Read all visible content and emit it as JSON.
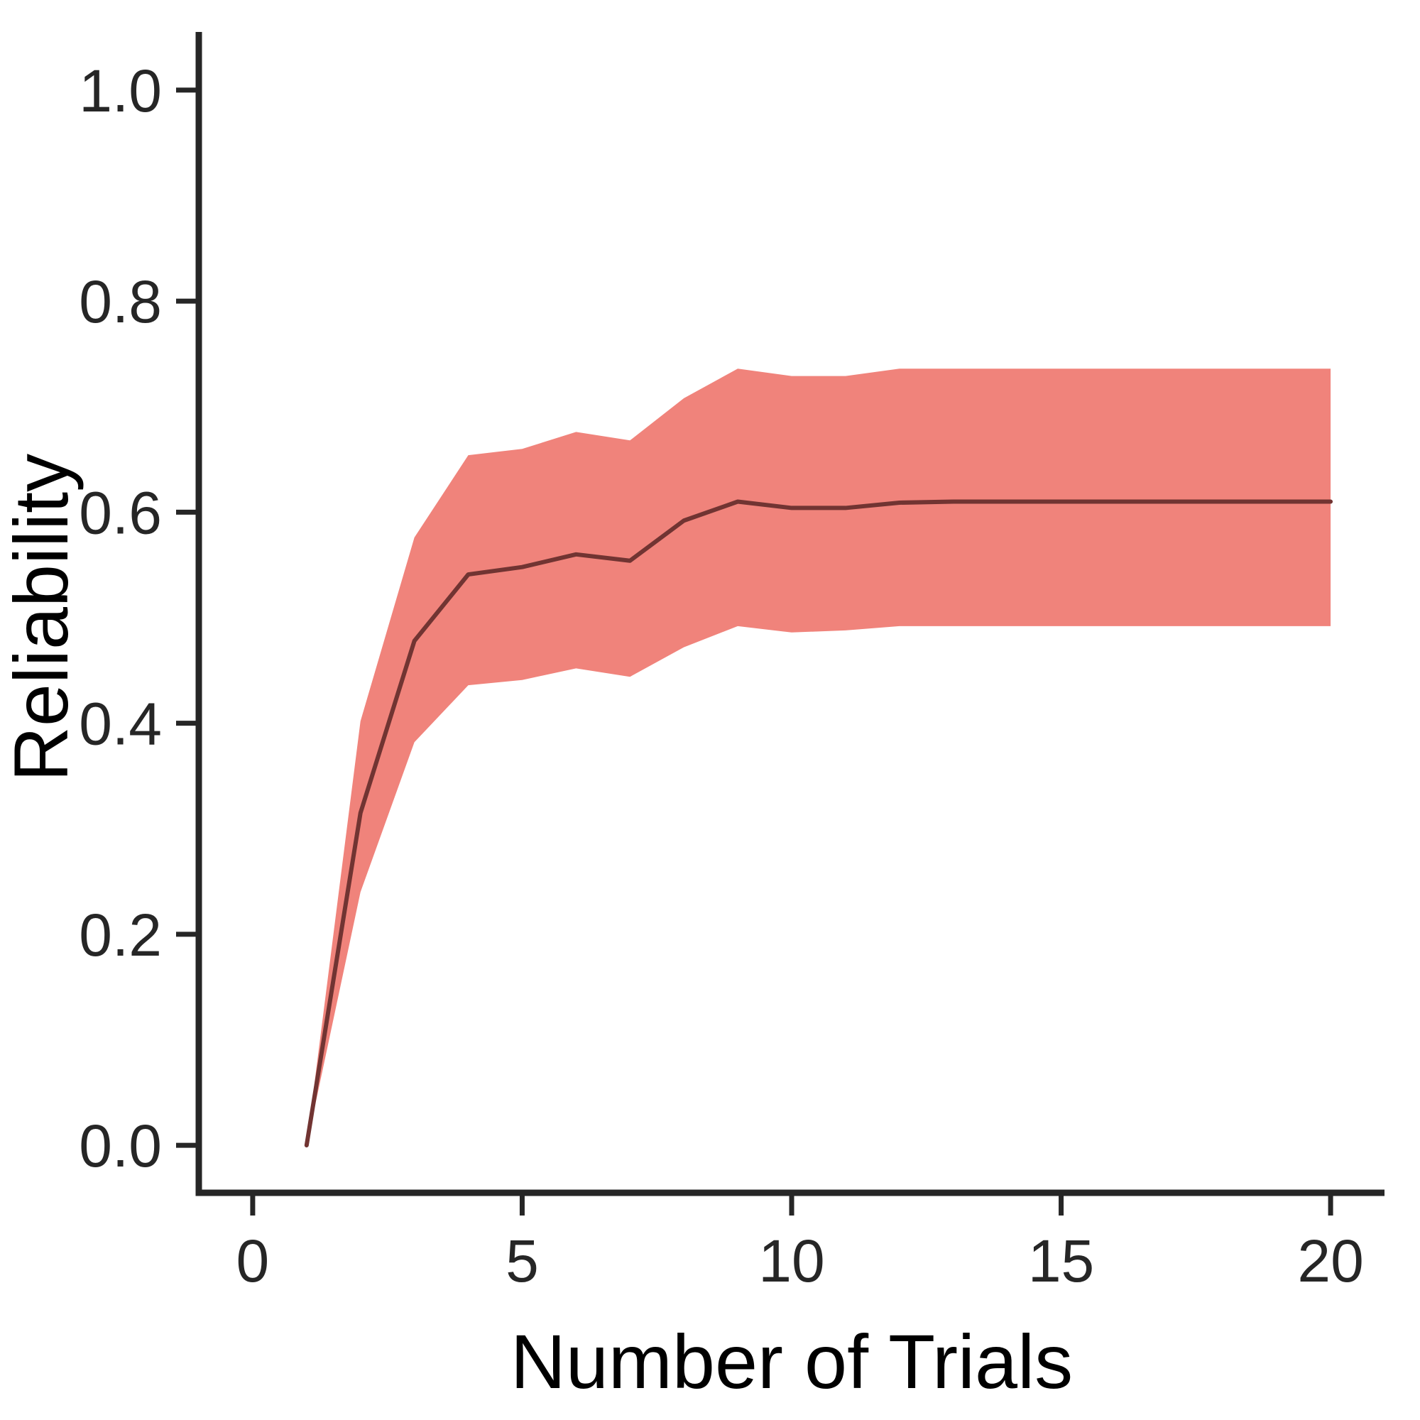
{
  "chart_data": {
    "type": "line",
    "title": "",
    "xlabel": "Number of Trials",
    "ylabel": "Reliability",
    "grid": false,
    "legend": "none",
    "xlim": [
      -1,
      21
    ],
    "ylim": [
      -0.045,
      1.045
    ],
    "x": [
      1,
      2,
      3,
      4,
      5,
      6,
      7,
      8,
      9,
      10,
      11,
      12,
      13,
      14,
      15,
      16,
      17,
      18,
      19,
      20
    ],
    "series": [
      {
        "name": "reliability_mean",
        "values": [
          0.0,
          0.315,
          0.478,
          0.541,
          0.548,
          0.56,
          0.554,
          0.592,
          0.61,
          0.604,
          0.604,
          0.609,
          0.61,
          0.61,
          0.61,
          0.61,
          0.61,
          0.61,
          0.61,
          0.61
        ]
      },
      {
        "name": "ci_lower",
        "values": [
          0.0,
          0.24,
          0.382,
          0.436,
          0.441,
          0.452,
          0.444,
          0.472,
          0.492,
          0.486,
          0.488,
          0.492,
          0.492,
          0.492,
          0.492,
          0.492,
          0.492,
          0.492,
          0.492,
          0.492
        ]
      },
      {
        "name": "ci_upper",
        "values": [
          0.0,
          0.402,
          0.576,
          0.654,
          0.66,
          0.676,
          0.668,
          0.708,
          0.736,
          0.729,
          0.729,
          0.736,
          0.736,
          0.736,
          0.736,
          0.736,
          0.736,
          0.736,
          0.736,
          0.736
        ]
      }
    ],
    "xticks": {
      "values": [
        0,
        5,
        10,
        15,
        20
      ],
      "labels": [
        "0",
        "5",
        "10",
        "15",
        "20"
      ]
    },
    "yticks": {
      "values": [
        0.0,
        0.2,
        0.4,
        0.6,
        0.8,
        1.0
      ],
      "labels": [
        "0.0",
        "0.2",
        "0.4",
        "0.6",
        "0.8",
        "1.0"
      ]
    },
    "colors": {
      "ribbon": "#F0837B",
      "line": "#713432",
      "axis": "#262626",
      "tick_text": "#262626",
      "title_text": "#000000",
      "background": "#FFFFFF"
    }
  }
}
